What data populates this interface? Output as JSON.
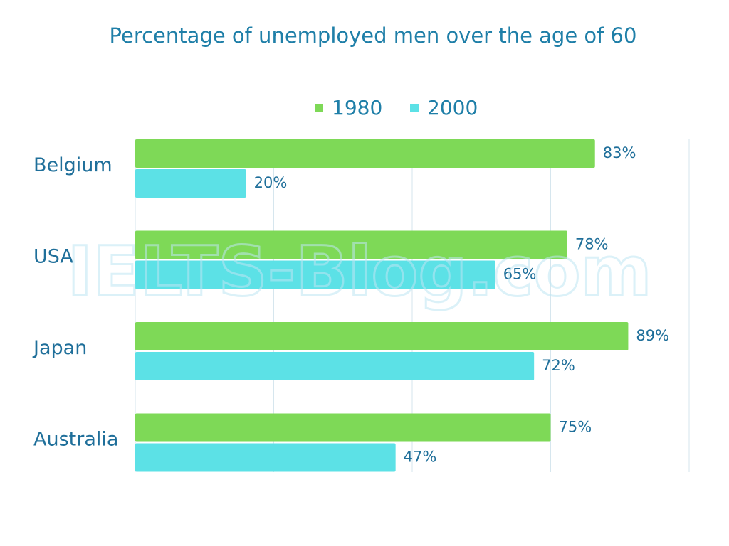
{
  "chart_data": {
    "type": "bar",
    "orientation": "horizontal",
    "title": "Percentage of unemployed men over the age of 60",
    "categories": [
      "Belgium",
      "USA",
      "Japan",
      "Australia"
    ],
    "series": [
      {
        "name": "1980",
        "values": [
          83,
          78,
          89,
          75
        ],
        "color": "#7ed957"
      },
      {
        "name": "2000",
        "values": [
          20,
          65,
          72,
          47
        ],
        "color": "#5ce1e6"
      }
    ],
    "value_suffix": "%",
    "xlim": [
      0,
      100
    ],
    "grid": true,
    "legend_position": "top"
  },
  "watermark": "IELTS-Blog.com",
  "colors": {
    "title": "#1f7fa8",
    "labels": "#1f6f9a",
    "grid": "#d6e6ee"
  }
}
